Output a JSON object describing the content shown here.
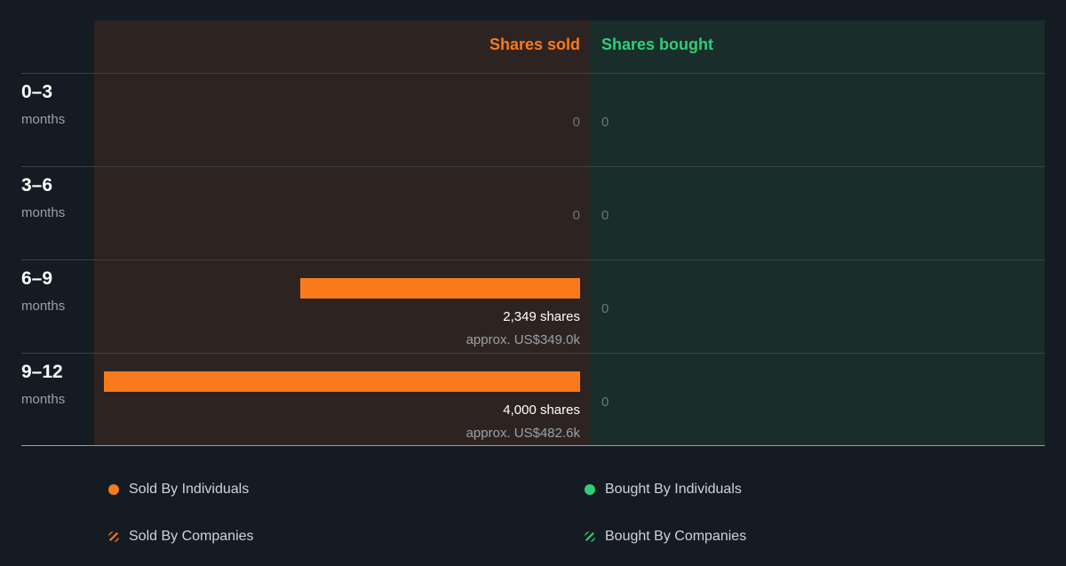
{
  "colors": {
    "sold": "#f97a1d",
    "bought": "#2fcf76",
    "sold_bg": "#2d2421",
    "bought_bg": "#192d2b",
    "page_bg": "#151b23"
  },
  "headers": {
    "sold": "Shares sold",
    "bought": "Shares bought"
  },
  "chart_data": {
    "type": "bar",
    "orientation": "horizontal-diverging",
    "categories": [
      "0–3 months",
      "3–6 months",
      "6–9 months",
      "9–12 months"
    ],
    "series": [
      {
        "name": "Shares sold",
        "values": [
          0,
          0,
          2349,
          4000
        ]
      },
      {
        "name": "Shares bought",
        "values": [
          0,
          0,
          0,
          0
        ]
      }
    ],
    "sold_value_usd": [
      null,
      null,
      "US$349.0k",
      "US$482.6k"
    ]
  },
  "rows": [
    {
      "period": "0–3",
      "unit": "months",
      "sold": 0,
      "sold_zero_text": "0",
      "bought_zero_text": "0"
    },
    {
      "period": "3–6",
      "unit": "months",
      "sold": 0,
      "sold_zero_text": "0",
      "bought_zero_text": "0"
    },
    {
      "period": "6–9",
      "unit": "months",
      "sold": 2349,
      "shares_text": "2,349 shares",
      "approx_text": "approx. US$349.0k",
      "bought_zero_text": "0"
    },
    {
      "period": "9–12",
      "unit": "months",
      "sold": 4000,
      "shares_text": "4,000 shares",
      "approx_text": "approx. US$482.6k",
      "bought_zero_text": "0"
    }
  ],
  "legend": {
    "sold_individuals": "Sold By Individuals",
    "sold_companies": "Sold By Companies",
    "bought_individuals": "Bought By Individuals",
    "bought_companies": "Bought By Companies"
  }
}
